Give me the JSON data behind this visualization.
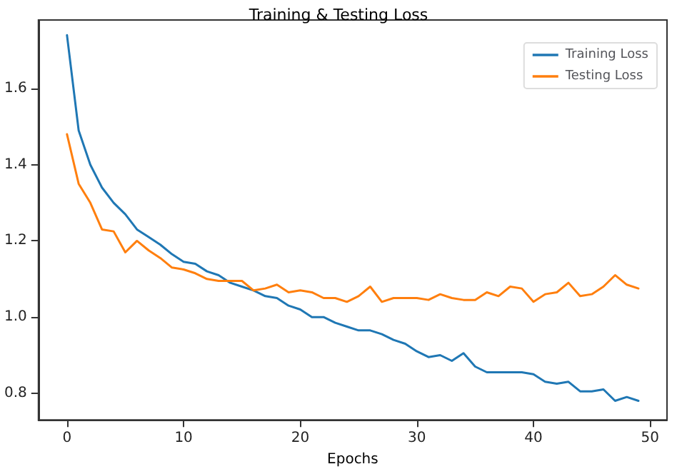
{
  "chart_data": {
    "type": "line",
    "title": "Training & Testing Loss",
    "xlabel": "Epochs",
    "x": [
      0,
      1,
      2,
      3,
      4,
      5,
      6,
      7,
      8,
      9,
      10,
      11,
      12,
      13,
      14,
      15,
      16,
      17,
      18,
      19,
      20,
      21,
      22,
      23,
      24,
      25,
      26,
      27,
      28,
      29,
      30,
      31,
      32,
      33,
      34,
      35,
      36,
      37,
      38,
      39,
      40,
      41,
      42,
      43,
      44,
      45,
      46,
      47,
      48,
      49
    ],
    "series": [
      {
        "name": "Training Loss",
        "color": "#1f77b4",
        "values": [
          1.74,
          1.49,
          1.4,
          1.34,
          1.3,
          1.27,
          1.23,
          1.21,
          1.19,
          1.165,
          1.145,
          1.14,
          1.12,
          1.11,
          1.09,
          1.08,
          1.07,
          1.055,
          1.05,
          1.03,
          1.02,
          1.0,
          1.0,
          0.985,
          0.975,
          0.965,
          0.965,
          0.955,
          0.94,
          0.93,
          0.91,
          0.895,
          0.9,
          0.885,
          0.905,
          0.87,
          0.855,
          0.855,
          0.855,
          0.855,
          0.85,
          0.83,
          0.825,
          0.83,
          0.805,
          0.805,
          0.81,
          0.78,
          0.79,
          0.78
        ]
      },
      {
        "name": "Testing Loss",
        "color": "#ff7f0e",
        "values": [
          1.48,
          1.35,
          1.3,
          1.23,
          1.225,
          1.17,
          1.2,
          1.175,
          1.155,
          1.13,
          1.125,
          1.115,
          1.1,
          1.095,
          1.095,
          1.095,
          1.07,
          1.075,
          1.085,
          1.065,
          1.07,
          1.065,
          1.05,
          1.05,
          1.04,
          1.055,
          1.08,
          1.04,
          1.05,
          1.05,
          1.05,
          1.045,
          1.06,
          1.05,
          1.045,
          1.045,
          1.065,
          1.055,
          1.08,
          1.075,
          1.04,
          1.06,
          1.065,
          1.09,
          1.055,
          1.06,
          1.08,
          1.11,
          1.085,
          1.075
        ]
      }
    ],
    "xlim": [
      -2.45,
      51.45
    ],
    "xticks": [
      0,
      10,
      20,
      30,
      40,
      50
    ],
    "ylim": [
      0.73,
      1.78
    ],
    "yticks": [
      0.8,
      {
        "value": 1,
        "label": "1.0"
      },
      1.2,
      1.4,
      1.6
    ],
    "grid": false,
    "legend": "top right",
    "marker": "none",
    "line_style": "solid"
  }
}
